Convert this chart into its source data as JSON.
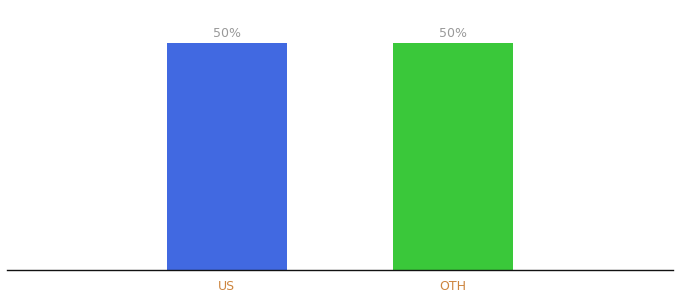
{
  "categories": [
    "US",
    "OTH"
  ],
  "values": [
    50,
    50
  ],
  "bar_colors": [
    "#4169e1",
    "#3ac83a"
  ],
  "label_format": "{}%",
  "background_color": "#ffffff",
  "label_color": "#999999",
  "label_fontsize": 9,
  "tick_fontsize": 9,
  "tick_color": "#cd853f",
  "ylim": [
    0,
    58
  ],
  "bar_width": 0.18,
  "x_positions": [
    0.33,
    0.67
  ],
  "xlim": [
    0,
    1
  ]
}
